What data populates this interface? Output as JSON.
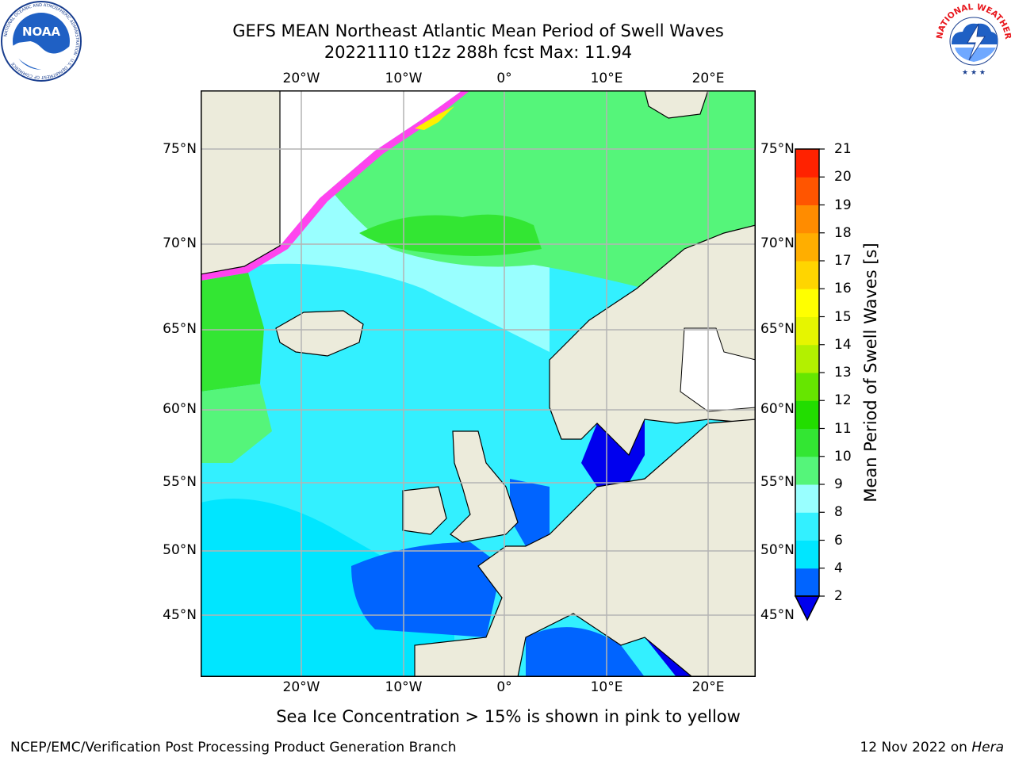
{
  "title": {
    "line1": "GEFS MEAN Northeast Atlantic Mean Period of Swell Waves",
    "line2": "20221110 t12z 288h fcst   Max: 11.94"
  },
  "logos": {
    "left": {
      "icon": "noaa-logo",
      "text": "NOAA",
      "ring_text": "NATIONAL OCEANIC AND ATMOSPHERIC ADMINISTRATION · U.S. DEPARTMENT OF COMMERCE"
    },
    "right": {
      "icon": "national-weather-service-logo",
      "ring_text": "NATIONAL WEATHER SERVICE"
    }
  },
  "map": {
    "lon_labels": [
      "20°W",
      "10°W",
      "0°",
      "10°E",
      "20°E"
    ],
    "lat_labels": [
      "75°N",
      "70°N",
      "65°N",
      "60°N",
      "55°N",
      "50°N",
      "45°N"
    ],
    "colors": {
      "land": "#ecebdb",
      "ice_pink": "#ff44ee",
      "ice_yellow": "#ffee00",
      "grid": "#b4b4b4",
      "coast": "#000000"
    }
  },
  "colorbar": {
    "label": "Mean Period of Swell Waves [s]",
    "ticks": [
      "2",
      "4",
      "6",
      "8",
      "9",
      "10",
      "11",
      "12",
      "13",
      "14",
      "15",
      "16",
      "17",
      "18",
      "19",
      "20",
      "21"
    ],
    "bin_colors": [
      "#0064ff",
      "#00e6ff",
      "#33f0ff",
      "#99ffff",
      "#55f57a",
      "#33e633",
      "#22dd00",
      "#66e600",
      "#b3f000",
      "#e6f500",
      "#ffff00",
      "#ffd500",
      "#ffae00",
      "#ff8c00",
      "#ff5500",
      "#ff2200"
    ],
    "under_color": "#0000ee"
  },
  "footer": {
    "ice_note": "Sea Ice Concentration > 15% is shown in pink to yellow",
    "credit_left": "NCEP/EMC/Verification Post Processing Product Generation Branch",
    "date": "12 Nov 2022 on",
    "machine": "Hera"
  }
}
